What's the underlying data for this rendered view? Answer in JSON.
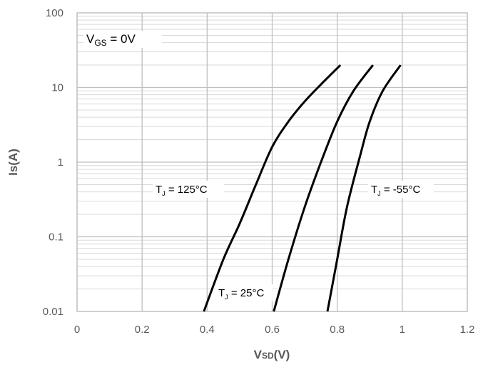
{
  "chart_data": {
    "type": "line",
    "xlabel": "VSD(V)",
    "xlabel_main": "V",
    "xlabel_sub": "SD",
    "xlabel_rest": "(V)",
    "ylabel": "Is(A)",
    "xlim": [
      0,
      1.2
    ],
    "ylim": [
      0.01,
      100
    ],
    "yscale": "log",
    "grid": true,
    "xticks": [
      "0",
      "0.2",
      "0.4",
      "0.6",
      "0.8",
      "1",
      "1.2"
    ],
    "xtick_values": [
      0,
      0.2,
      0.4,
      0.6,
      0.8,
      1,
      1.2
    ],
    "yticks": [
      "0.01",
      "0.1",
      "1",
      "10",
      "100"
    ],
    "ytick_values": [
      0.01,
      0.1,
      1,
      10,
      100
    ],
    "line_color": "#000000",
    "grid_color": "#bfbfbf",
    "annotations": [
      {
        "id": "vgs",
        "main": "V",
        "sub": "GS",
        "rest": " = 0V"
      },
      {
        "id": "t125",
        "main": "T",
        "sub": "J",
        "rest": " = 125°C"
      },
      {
        "id": "t25",
        "main": "T",
        "sub": "J",
        "rest": " = 25°C"
      },
      {
        "id": "tm55",
        "main": "T",
        "sub": "J",
        "rest": " = -55°C"
      }
    ],
    "series": [
      {
        "x": [
          0.39,
          0.45,
          0.5,
          0.55,
          0.6,
          0.65,
          0.7,
          0.75,
          0.81
        ],
        "y": [
          0.01,
          0.05,
          0.15,
          0.5,
          1.6,
          3.5,
          6.5,
          11,
          20
        ]
      },
      {
        "x": [
          0.605,
          0.65,
          0.7,
          0.75,
          0.8,
          0.85,
          0.91
        ],
        "y": [
          0.01,
          0.05,
          0.25,
          1.0,
          3.5,
          9,
          20
        ]
      },
      {
        "x": [
          0.77,
          0.8,
          0.83,
          0.87,
          0.9,
          0.94,
          0.995
        ],
        "y": [
          0.01,
          0.05,
          0.25,
          1.2,
          3.5,
          9,
          20
        ]
      }
    ]
  }
}
